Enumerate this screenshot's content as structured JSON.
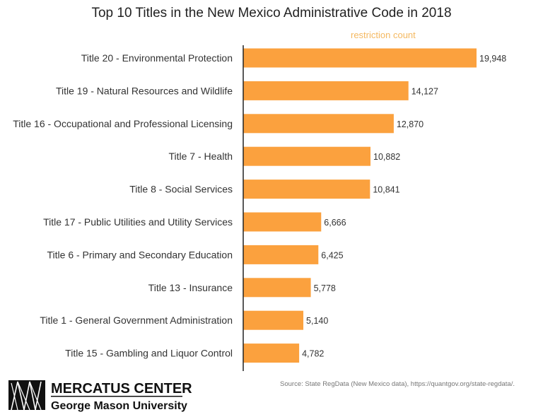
{
  "chart_data": {
    "type": "bar",
    "orientation": "horizontal",
    "title": "Top 10 Titles in the New Mexico Administrative Code in 2018",
    "series_label": "restriction count",
    "categories": [
      "Title 20 - Environmental Protection",
      "Title 19 - Natural Resources and Wildlife",
      "Title 16 - Occupational and Professional Licensing",
      "Title 7 - Health",
      "Title 8 - Social Services",
      "Title 17 - Public Utilities and Utility Services",
      "Title 6 - Primary and Secondary Education",
      "Title 13 - Insurance",
      "Title 1 - General Government Administration",
      "Title 15 - Gambling and Liquor Control"
    ],
    "values": [
      19948,
      14127,
      12870,
      10882,
      10841,
      6666,
      6425,
      5778,
      5140,
      4782
    ],
    "data_labels": [
      "19,948",
      "14,127",
      "12,870",
      "10,882",
      "10,841",
      "6,666",
      "6,425",
      "5,778",
      "5,140",
      "4,782"
    ],
    "xlim": [
      0,
      20000
    ],
    "grid": false,
    "bar_color": "#fba13e",
    "series_label_color": "#f4b860"
  },
  "footer": {
    "source": "Source: State RegData (New Mexico data), https://quantgov.org/state-regdata/.",
    "logo_line1": "MERCATUS CENTER",
    "logo_line2": "George Mason University"
  }
}
